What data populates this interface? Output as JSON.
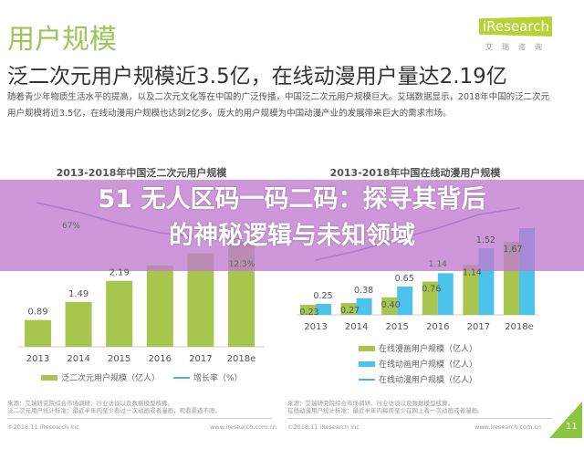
{
  "header": {
    "section": "用户规模",
    "logo": "iResearch",
    "logo_sub": "艾瑞咨询",
    "headline": "泛二次元用户规模近3.5亿，在线动漫用户量达2.19亿",
    "body": "随着青少年物质生活水平的提高，以及二次元文化等在中国的广泛传播，中国泛二次元用户规模巨大。艾瑞数据显示，2018年中国的泛二次元用户规模将近3.5亿，在线动漫用户规模也达到2亿多。庞大的用户规模为中国动漫产业的发展带来巨大的需求市场。"
  },
  "overlay": {
    "line1": "51 无人区码一码二码：探寻其背后",
    "line2": "的神秘逻辑与未知领域",
    "color": "#c07ad0"
  },
  "chart_data": [
    {
      "type": "bar",
      "title": "2013-2018年中国泛二次元用户规模",
      "categories": [
        "2013",
        "2014",
        "2015",
        "2016",
        "2017",
        "2018e"
      ],
      "series": [
        {
          "name": "泛二次元用户规模（亿人）",
          "values": [
            0.89,
            1.49,
            2.19,
            2.7,
            3.1,
            3.5
          ],
          "labels": [
            "0.89",
            "1.49",
            "2.19",
            "",
            "",
            ""
          ],
          "color": "#a8c64e"
        },
        {
          "name": "增长率（%）",
          "type": "line",
          "labels": [
            "",
            "67%",
            "",
            "",
            "",
            "12.3%"
          ],
          "color": "#6f7fc0"
        }
      ]
    },
    {
      "type": "bar",
      "title": "2013-2018年中国在线动漫用户规模",
      "categories": [
        "2013",
        "2014",
        "2015",
        "2016",
        "2017",
        "2018e"
      ],
      "series": [
        {
          "name": "在线漫画用户规模（亿人）",
          "values": [
            0.23,
            0.27,
            0.4,
            0.76,
            1.14,
            1.67
          ],
          "labels": [
            "0.23",
            "0.27",
            "0.40",
            "0.76",
            "1.14",
            "1.67"
          ],
          "color": "#a8c64e"
        },
        {
          "name": "在线动画用户规模（亿人）",
          "values": [
            0.25,
            0.38,
            0.65,
            0.95,
            1.52,
            1.98
          ],
          "labels": [
            "0.25",
            "0.38",
            "0.65",
            "",
            "1.52",
            ""
          ],
          "color": "#4cc3ea"
        },
        {
          "name": "在线动漫用户规模（亿人）",
          "type": "line",
          "labels": [
            "",
            "",
            "",
            "1.14",
            "",
            ""
          ],
          "color": "#6f7fc0"
        }
      ]
    }
  ],
  "footer": {
    "left_src1": "来源：艾瑞研究院综合市场调研、行业访谈以及数据模型核算。",
    "left_src2": "泛二次元用户统计标准：最近半年内至少看过一次动画或者漫画，观看渠道不限。",
    "right_src1": "来源：艾瑞研究院综合市场调研、行业访谈以及数据模型核算。",
    "right_src2": "在线动漫用户统计标准：最近半年内每周至少在网上看一次动画或者漫画。",
    "left_copy": "©2018.11 iResearch Inc",
    "right_copy": "©2018.11 iResearch Inc",
    "site": "www.iresearch.com.cn",
    "page": "11"
  }
}
